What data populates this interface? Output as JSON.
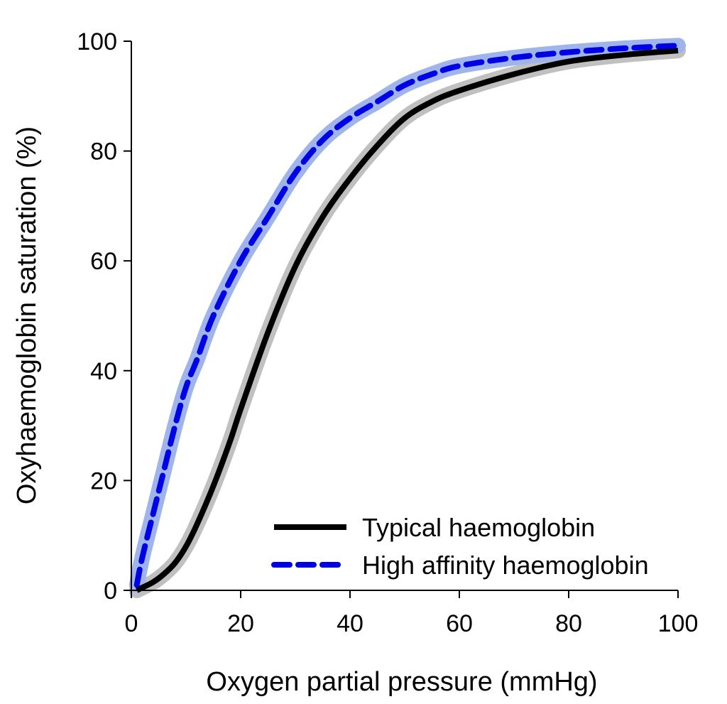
{
  "chart_data": {
    "type": "line",
    "title": "",
    "xlabel": "Oxygen partial pressure (mmHg)",
    "ylabel": "Oxyhaemoglobin saturation (%)",
    "xlim": [
      0,
      100
    ],
    "ylim": [
      0,
      100
    ],
    "xticks": [
      0,
      20,
      40,
      60,
      80,
      100
    ],
    "yticks": [
      0,
      20,
      40,
      60,
      80,
      100
    ],
    "grid": false,
    "legend_position": "bottom-right",
    "series": [
      {
        "name": "Typical haemoglobin",
        "color": "#000000",
        "band_color": "#c0c0c0",
        "style": "solid",
        "x": [
          1,
          2,
          4,
          6,
          8,
          10,
          12,
          15,
          18,
          20,
          25,
          30,
          35,
          40,
          45,
          50,
          55,
          60,
          70,
          80,
          90,
          100
        ],
        "y": [
          0,
          0.5,
          1.5,
          3,
          5,
          8,
          12,
          19,
          27,
          33,
          47,
          59,
          68,
          75,
          81,
          86,
          89,
          91,
          94,
          96.3,
          97.5,
          98.3
        ]
      },
      {
        "name": "High affinity haemoglobin",
        "color": "#0000e6",
        "band_color": "#9fb4ea",
        "style": "dashed",
        "x": [
          1,
          2,
          4,
          6,
          8,
          10,
          12,
          15,
          20,
          25,
          30,
          35,
          40,
          45,
          50,
          55,
          60,
          70,
          80,
          90,
          100
        ],
        "y": [
          1,
          6,
          14,
          22,
          30,
          37,
          42,
          50,
          60,
          68,
          76,
          82,
          86,
          89,
          92,
          94,
          95.5,
          97,
          98,
          98.7,
          99.2
        ]
      }
    ]
  }
}
